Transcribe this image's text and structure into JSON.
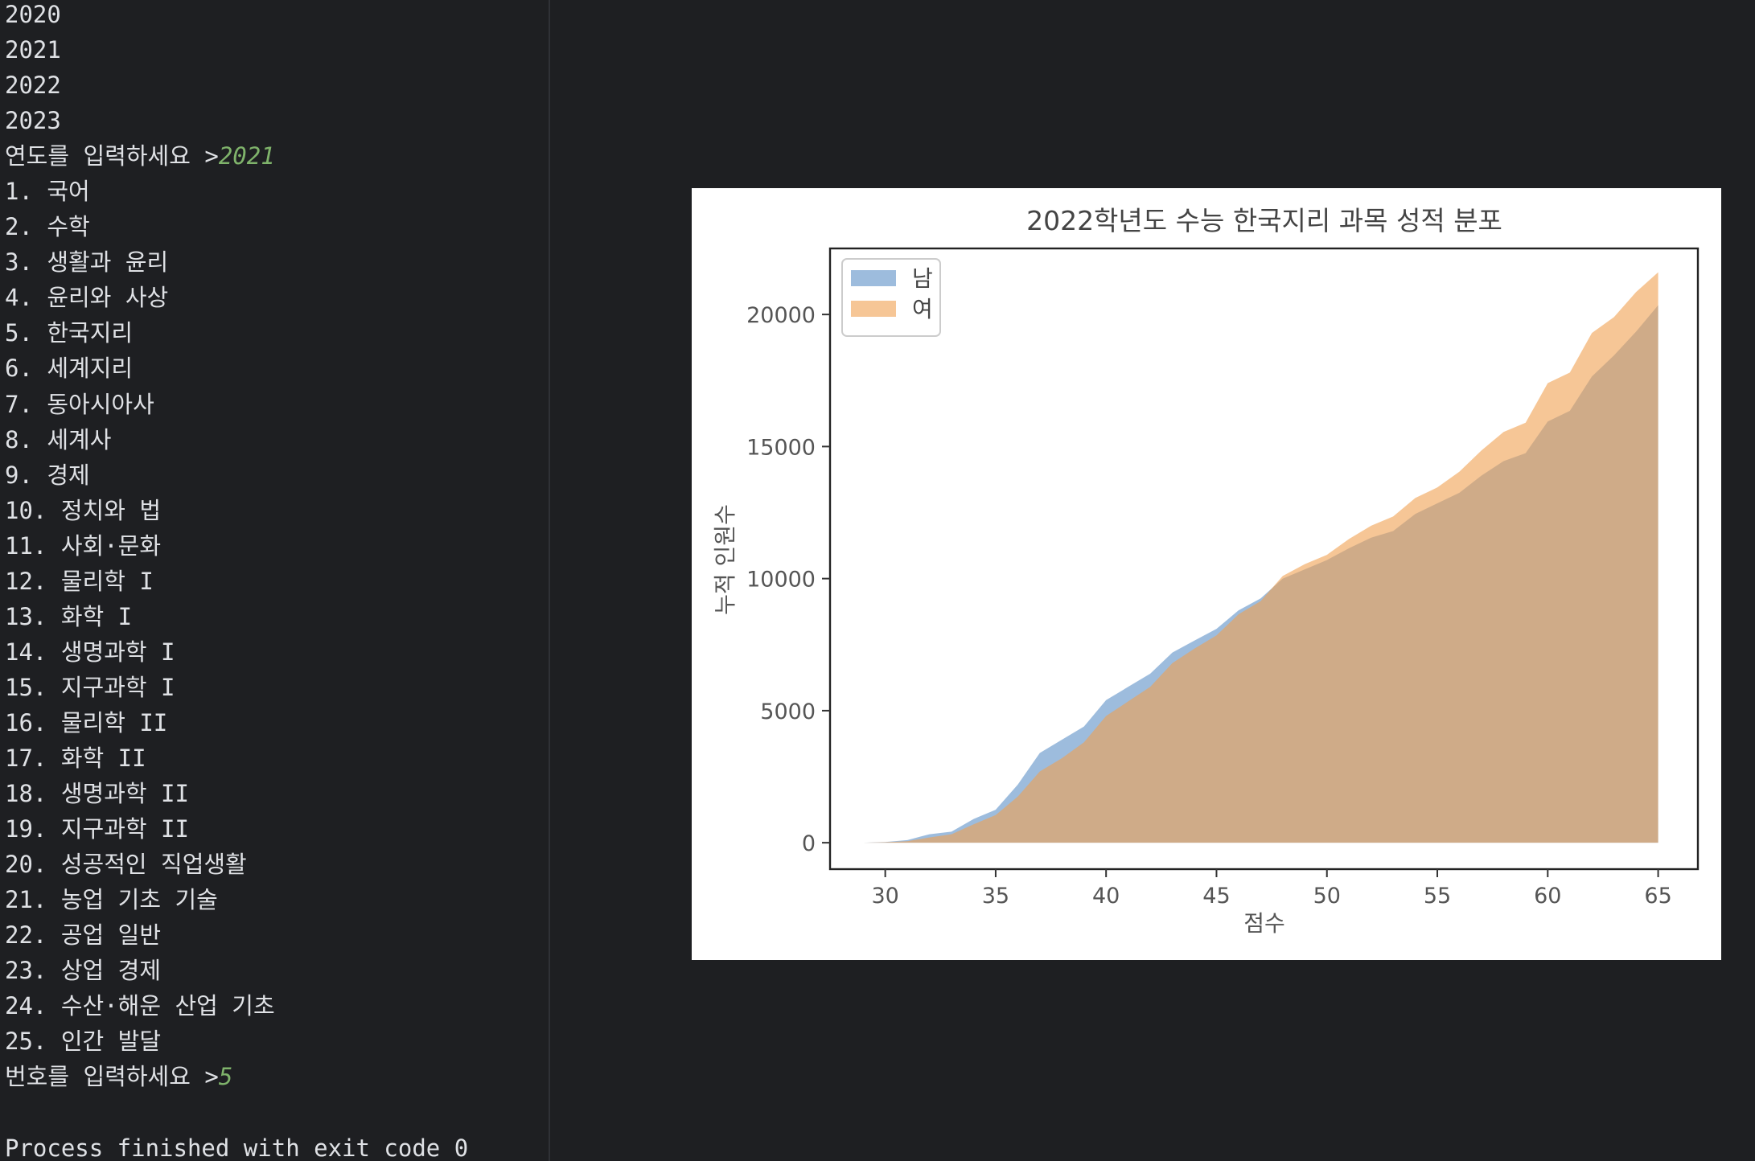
{
  "console": {
    "lines": [
      {
        "text": "2020"
      },
      {
        "text": "2021"
      },
      {
        "text": "2022"
      },
      {
        "text": "2023"
      },
      {
        "text": "연도를 입력하세요 >",
        "input": "2021"
      },
      {
        "text": "1. 국어"
      },
      {
        "text": "2. 수학"
      },
      {
        "text": "3. 생활과 윤리"
      },
      {
        "text": "4. 윤리와 사상"
      },
      {
        "text": "5. 한국지리"
      },
      {
        "text": "6. 세계지리"
      },
      {
        "text": "7. 동아시아사"
      },
      {
        "text": "8. 세계사"
      },
      {
        "text": "9. 경제"
      },
      {
        "text": "10. 정치와 법"
      },
      {
        "text": "11. 사회·문화"
      },
      {
        "text": "12. 물리학 I"
      },
      {
        "text": "13. 화학 I"
      },
      {
        "text": "14. 생명과학 I"
      },
      {
        "text": "15. 지구과학 I"
      },
      {
        "text": "16. 물리학 II"
      },
      {
        "text": "17. 화학 II"
      },
      {
        "text": "18. 생명과학 II"
      },
      {
        "text": "19. 지구과학 II"
      },
      {
        "text": "20. 성공적인 직업생활"
      },
      {
        "text": "21. 농업 기초 기술"
      },
      {
        "text": "22. 공업 일반"
      },
      {
        "text": "23. 상업 경제"
      },
      {
        "text": "24. 수산·해운 산업 기초"
      },
      {
        "text": "25. 인간 발달"
      },
      {
        "text": "번호를 입력하세요 >",
        "input": "5"
      },
      {
        "text": ""
      },
      {
        "text": "Process finished with exit code 0"
      }
    ]
  },
  "colors": {
    "background": "#1e1f22",
    "console_text": "#dfe1e5",
    "console_input": "#7fb36b",
    "male": "#5b8fc7",
    "female": "#f0a050",
    "male_alpha": 0.6,
    "female_alpha": 0.6
  },
  "chart_data": {
    "type": "area",
    "title": "2022학년도 수능 한국지리 과목 성적 분포",
    "xlabel": "점수",
    "ylabel": "누적 인원수",
    "xlim": [
      27.5,
      66.8
    ],
    "ylim": [
      -1000,
      22500
    ],
    "xticks": [
      30,
      35,
      40,
      45,
      50,
      55,
      60,
      65
    ],
    "yticks": [
      0,
      5000,
      10000,
      15000,
      20000
    ],
    "legend_position": "upper left",
    "grid": false,
    "x": [
      29,
      30,
      31,
      32,
      33,
      34,
      35,
      36,
      37,
      38,
      39,
      40,
      41,
      42,
      43,
      44,
      45,
      46,
      47,
      48,
      49,
      50,
      51,
      52,
      53,
      54,
      55,
      56,
      57,
      58,
      59,
      60,
      61,
      62,
      63,
      64,
      65
    ],
    "series": [
      {
        "name": "남",
        "values": [
          0,
          30,
          100,
          320,
          420,
          900,
          1250,
          2200,
          3400,
          3900,
          4400,
          5400,
          5900,
          6400,
          7200,
          7650,
          8100,
          8800,
          9250,
          10000,
          10350,
          10700,
          11150,
          11550,
          11800,
          12450,
          12850,
          13250,
          13900,
          14450,
          14750,
          15950,
          16350,
          17650,
          18450,
          19350,
          20350
        ]
      },
      {
        "name": "여",
        "values": [
          0,
          20,
          60,
          200,
          320,
          700,
          1050,
          1750,
          2700,
          3200,
          3800,
          4800,
          5350,
          5900,
          6800,
          7350,
          7850,
          8650,
          9150,
          10100,
          10550,
          10900,
          11500,
          12000,
          12350,
          13050,
          13450,
          14050,
          14850,
          15550,
          15900,
          17400,
          17800,
          19300,
          19900,
          20850,
          21600
        ]
      }
    ]
  }
}
